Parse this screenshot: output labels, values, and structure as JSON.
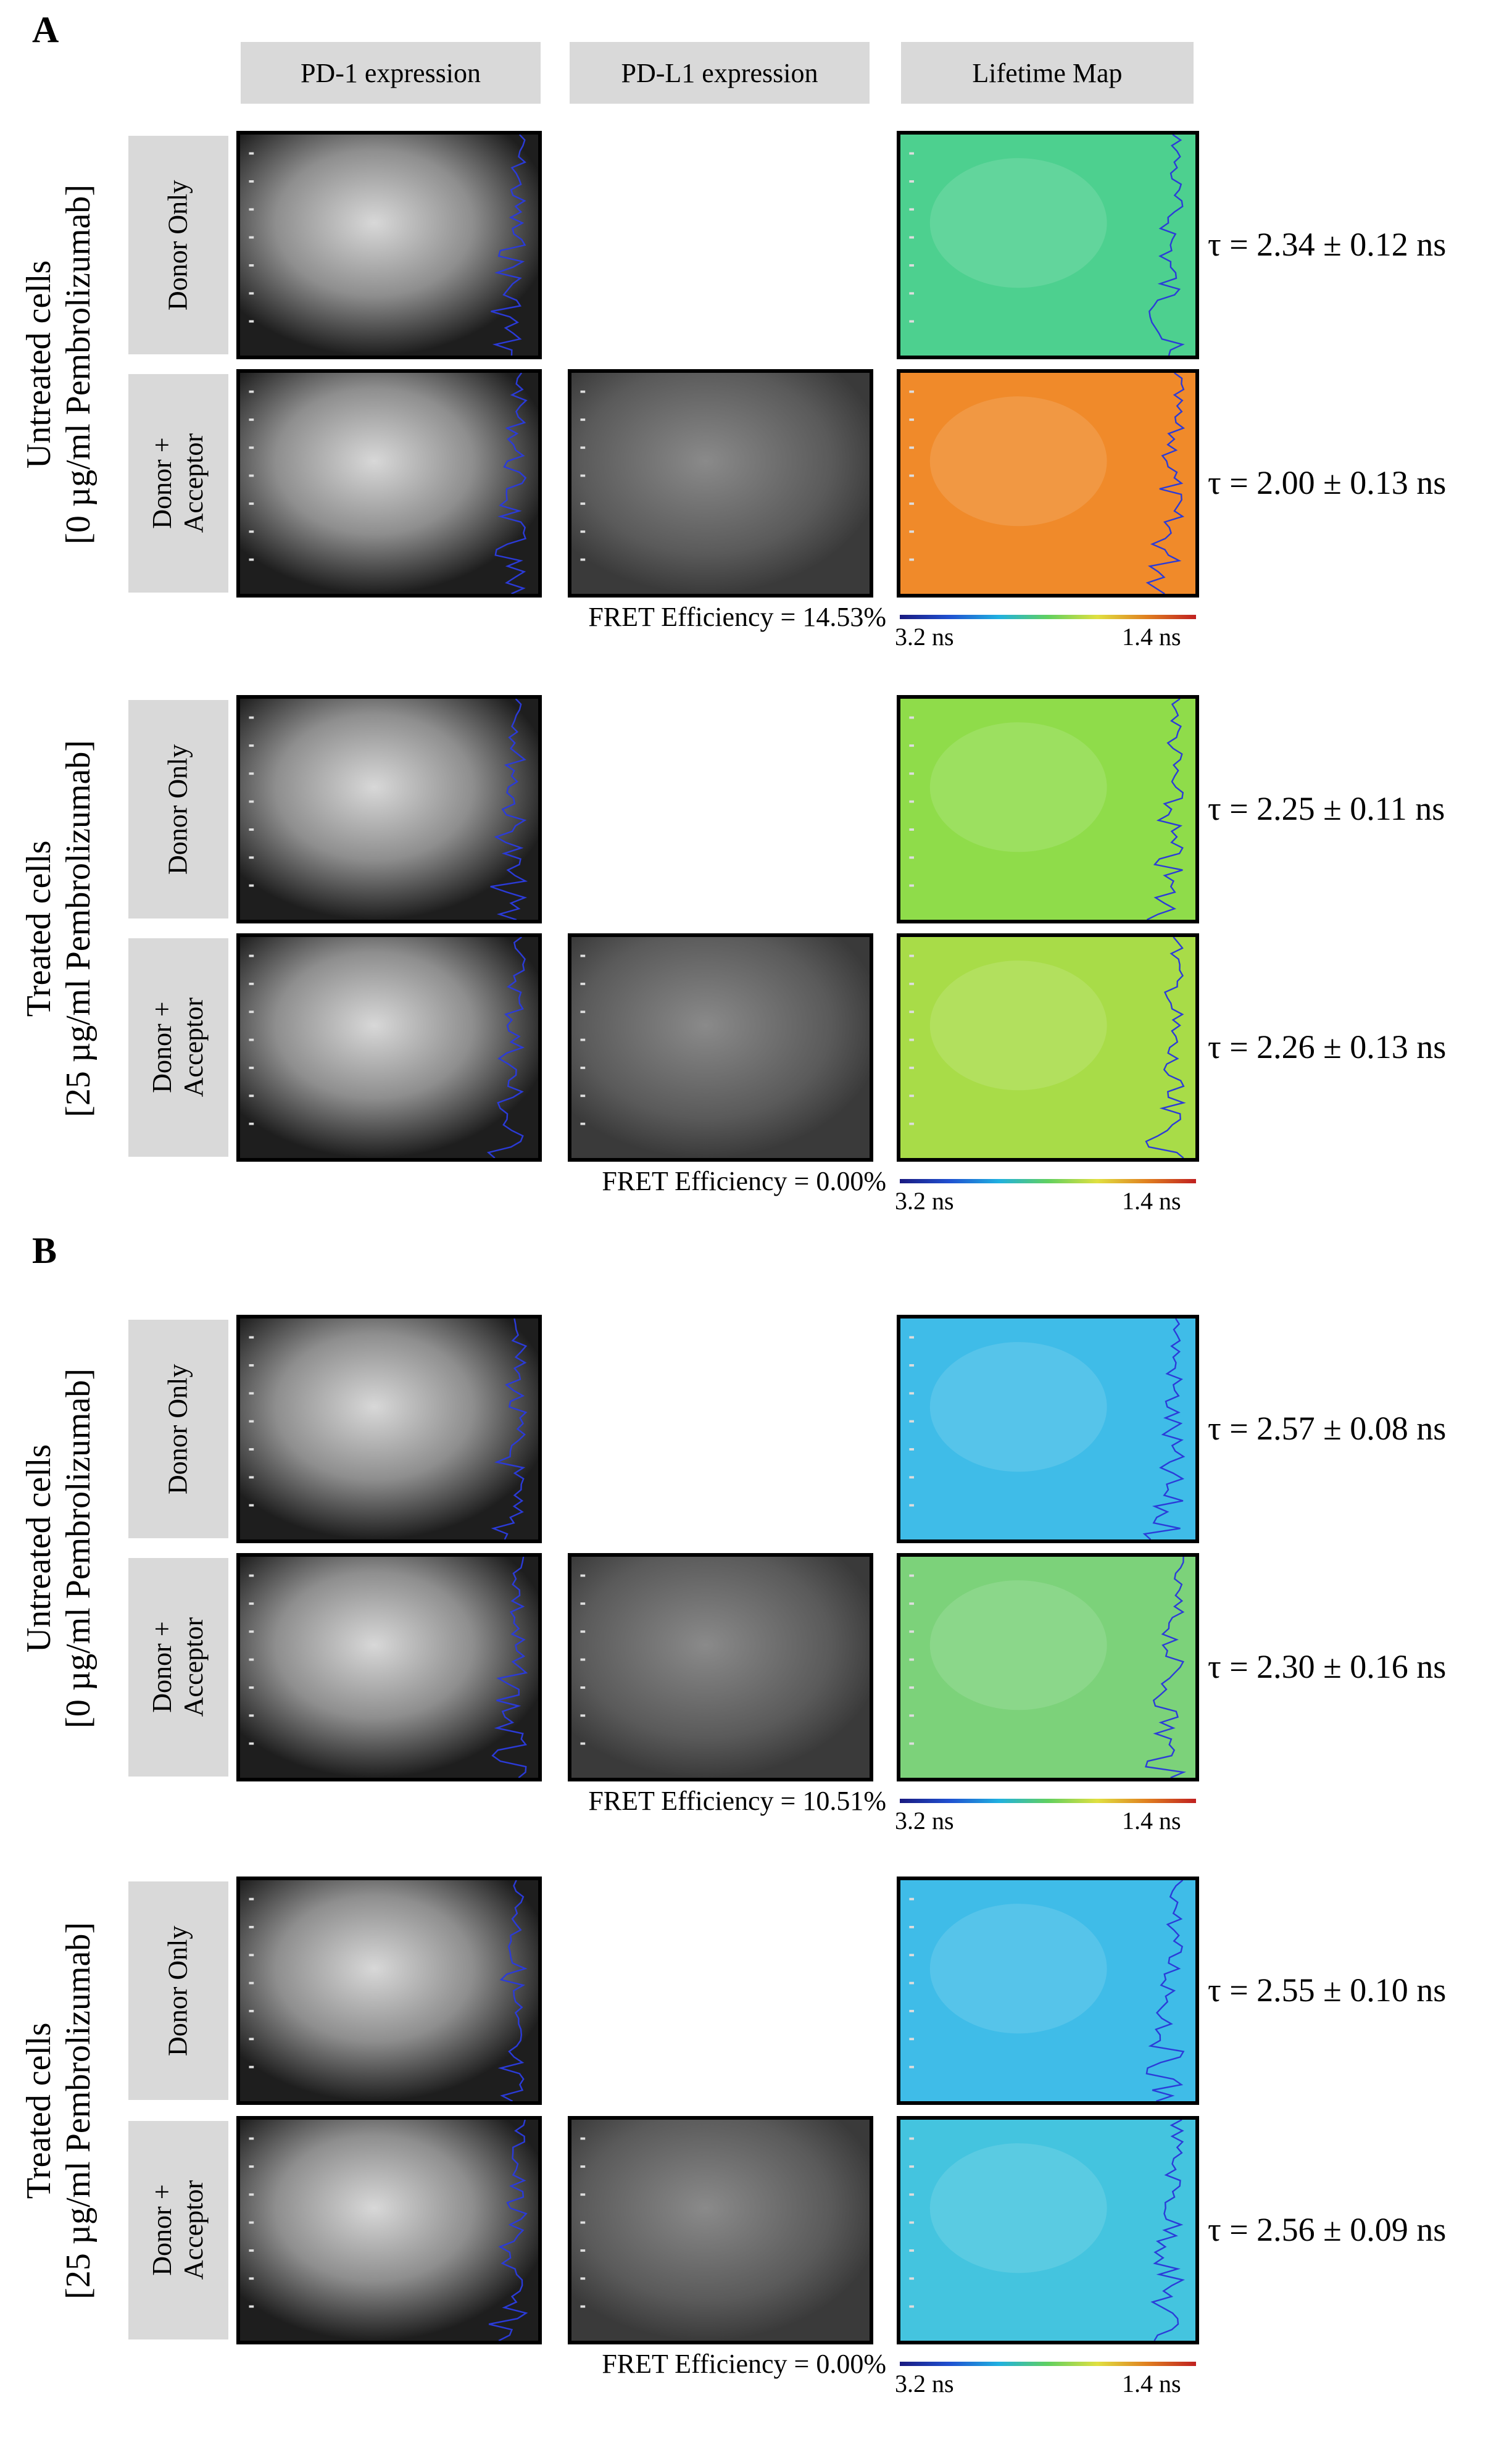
{
  "column_headers": [
    "PD-1 expression",
    "PD-L1 expression",
    "Lifetime Map"
  ],
  "panels": [
    {
      "letter": "A",
      "groups": [
        {
          "label": "Untreated cells\n[0 µg/ml Pembrolizumab]",
          "rows": [
            {
              "label": "Donor Only",
              "tau": "τ = 2.34 ± 0.12 ns",
              "has_acceptor": false,
              "map_color": "#4dd08f"
            },
            {
              "label": "Donor +\nAcceptor",
              "tau": "τ = 2.00 ± 0.13 ns",
              "has_acceptor": true,
              "map_color": "#f08a2a"
            }
          ],
          "fret": "FRET Efficiency = 14.53%"
        },
        {
          "label": "Treated cells\n[25 µg/ml Pembrolizumab]",
          "rows": [
            {
              "label": "Donor Only",
              "tau": "τ = 2.25 ± 0.11 ns",
              "has_acceptor": false,
              "map_color": "#8fdc4a"
            },
            {
              "label": "Donor +\nAcceptor",
              "tau": "τ = 2.26 ± 0.13 ns",
              "has_acceptor": true,
              "map_color": "#a8dc48"
            }
          ],
          "fret": "FRET Efficiency = 0.00%"
        }
      ]
    },
    {
      "letter": "B",
      "groups": [
        {
          "label": "Untreated cells\n[0 µg/ml Pembrolizumab]",
          "rows": [
            {
              "label": "Donor Only",
              "tau": "τ = 2.57 ± 0.08 ns",
              "has_acceptor": false,
              "map_color": "#3fbce8"
            },
            {
              "label": "Donor +\nAcceptor",
              "tau": "τ = 2.30 ± 0.16 ns",
              "has_acceptor": true,
              "map_color": "#7cd27a"
            }
          ],
          "fret": "FRET Efficiency = 10.51%"
        },
        {
          "label": "Treated cells\n[25 µg/ml Pembrolizumab]",
          "rows": [
            {
              "label": "Donor Only",
              "tau": "τ = 2.55 ± 0.10 ns",
              "has_acceptor": false,
              "map_color": "#3fbce8"
            },
            {
              "label": "Donor +\nAcceptor",
              "tau": "τ = 2.56 ± 0.09 ns",
              "has_acceptor": true,
              "map_color": "#44c4df"
            }
          ],
          "fret": "FRET Efficiency = 0.00%"
        }
      ]
    }
  ],
  "colorbar": {
    "left": "3.2 ns",
    "right": "1.4 ns"
  }
}
